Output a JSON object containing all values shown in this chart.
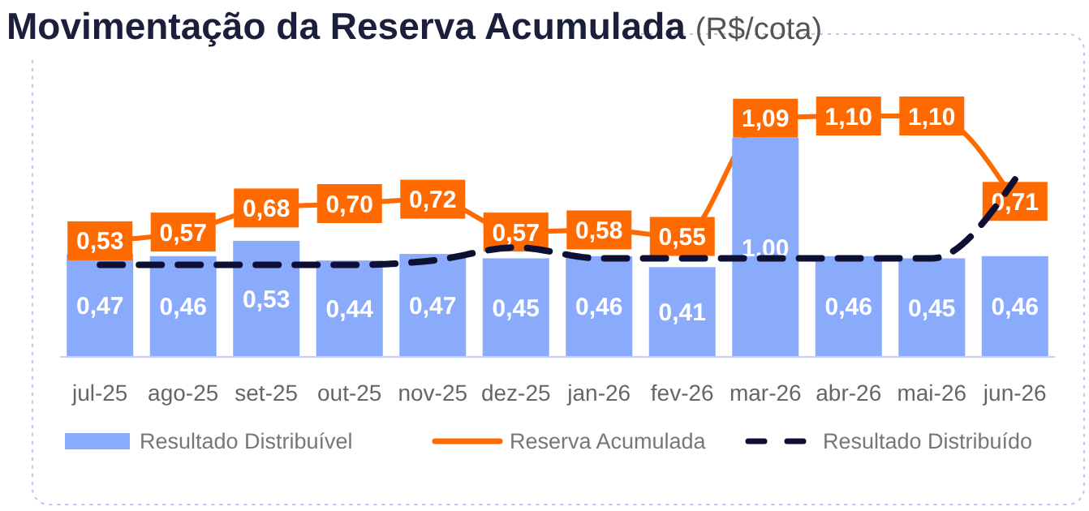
{
  "chart_data": {
    "type": "bar",
    "title": "Movimentação da Reserva Acumulada",
    "subtitle": "(R$/cota)",
    "categories": [
      "jul-25",
      "ago-25",
      "set-25",
      "out-25",
      "nov-25",
      "dez-25",
      "jan-26",
      "fev-26",
      "mar-26",
      "abr-26",
      "mai-26",
      "jun-26"
    ],
    "ylim": [
      0,
      1.2
    ],
    "legend": "bottom",
    "grid": false,
    "series": [
      {
        "name": "Resultado Distribuível",
        "color": "#8aabfb",
        "values": [
          0.47,
          0.46,
          0.53,
          0.44,
          0.47,
          0.45,
          0.46,
          0.41,
          1.0,
          0.46,
          0.45,
          0.46
        ],
        "value_labels": [
          "0,47",
          "0,46",
          "0,53",
          "0,44",
          "0,47",
          "0,45",
          "0,46",
          "0,41",
          "1,00",
          "0,46",
          "0,45",
          "0,46"
        ]
      },
      {
        "name": "Reserva Acumulada",
        "type": "line",
        "color": "#ff6a00",
        "line_style": "solid",
        "marker": "square",
        "values": [
          0.53,
          0.57,
          0.68,
          0.7,
          0.72,
          0.57,
          0.58,
          0.55,
          1.09,
          1.1,
          1.1,
          0.71
        ],
        "value_labels": [
          "0,53",
          "0,57",
          "0,68",
          "0,70",
          "0,72",
          "0,57",
          "0,58",
          "0,55",
          "1,09",
          "1,10",
          "1,10",
          "0,71"
        ]
      },
      {
        "name": "Resultado Distribuído",
        "type": "line",
        "color": "#0d1033",
        "line_style": "dashed",
        "values": [
          0.42,
          0.42,
          0.42,
          0.42,
          0.44,
          0.5,
          0.45,
          0.45,
          0.45,
          0.45,
          0.45,
          0.81
        ]
      }
    ]
  }
}
